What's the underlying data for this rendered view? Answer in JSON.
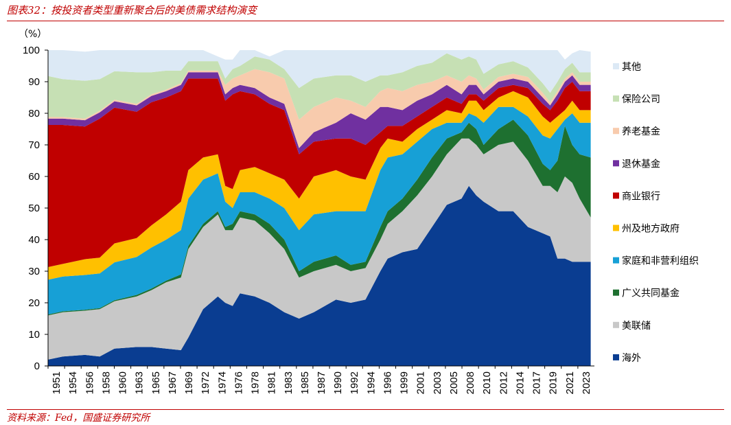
{
  "title": "图表32：按投资者类型重新聚合后的美债需求结构演变",
  "source": "资料来源：Fed，国盛证券研究所",
  "chart_data": {
    "type": "area",
    "stacked": true,
    "ylabel": "（%）",
    "ylim": [
      0,
      100
    ],
    "yticks": [
      "0",
      "10",
      "20",
      "30",
      "40",
      "50",
      "60",
      "70",
      "80",
      "90",
      "100"
    ],
    "xlim": [
      1951,
      2025
    ],
    "xtick_labels": [
      "1951",
      "1954",
      "1956",
      "1958",
      "1960",
      "1963",
      "1965",
      "1967",
      "1969",
      "1972",
      "1974",
      "1976",
      "1978",
      "1981",
      "1983",
      "1985",
      "1987",
      "1990",
      "1992",
      "1994",
      "1996",
      "1999",
      "2001",
      "2003",
      "2005",
      "2008",
      "2010",
      "2012",
      "2014",
      "2017",
      "2019",
      "2021",
      "2023"
    ],
    "legend_position": "right",
    "x": [
      1951,
      1953,
      1956,
      1958,
      1960,
      1963,
      1965,
      1967,
      1969,
      1970,
      1972,
      1974,
      1975,
      1976,
      1977,
      1979,
      1981,
      1983,
      1985,
      1987,
      1990,
      1992,
      1994,
      1996,
      1997,
      1999,
      2001,
      2003,
      2005,
      2007,
      2008,
      2009,
      2010,
      2012,
      2014,
      2016,
      2018,
      2019,
      2020,
      2021,
      2022,
      2023,
      2024.5
    ],
    "series": [
      {
        "name": "海外",
        "color": "#0a3d91",
        "values": [
          2,
          3,
          3.5,
          3,
          5.5,
          6,
          6,
          5.5,
          5,
          9,
          18,
          22,
          20,
          19,
          23,
          22,
          20,
          17,
          15,
          17,
          21,
          20,
          21,
          30,
          34,
          36,
          37,
          44,
          51,
          53,
          57,
          54,
          52,
          49,
          49,
          44,
          42,
          41,
          34,
          34,
          33,
          33,
          33
        ]
      },
      {
        "name": "美联储",
        "color": "#c8c8c8",
        "values": [
          14,
          14,
          14,
          15,
          15,
          16,
          18,
          21,
          23,
          28,
          26,
          26,
          23,
          24,
          24,
          24,
          22,
          20,
          13,
          13,
          11,
          10,
          10,
          10,
          11,
          13,
          17,
          16,
          16,
          19,
          15,
          16,
          15,
          21,
          22,
          21,
          15,
          16,
          21,
          26,
          25,
          20,
          14
        ]
      },
      {
        "name": "广义共同基金",
        "color": "#1e7030",
        "values": [
          0.3,
          0.3,
          0.3,
          0.3,
          0.3,
          0.5,
          0.5,
          0.5,
          1,
          1,
          1,
          1,
          1,
          2,
          2,
          2,
          3,
          3,
          2,
          3,
          3,
          2,
          2,
          4,
          4,
          4,
          5,
          6,
          5,
          2,
          5,
          5,
          3,
          5,
          7,
          8,
          7,
          5,
          10,
          16,
          12,
          14,
          19
        ]
      },
      {
        "name": "家庭和非营利组织",
        "color": "#17a0d6",
        "values": [
          11,
          11,
          11,
          11,
          12,
          12,
          13,
          13,
          14,
          15,
          14,
          12,
          8,
          5,
          6,
          7,
          8,
          10,
          13,
          15,
          14,
          17,
          16,
          18,
          17,
          14,
          12,
          9,
          5,
          3,
          3,
          4,
          7,
          7,
          4,
          6,
          9,
          10,
          10,
          2,
          10,
          10,
          11
        ]
      },
      {
        "name": "州及地方政府",
        "color": "#ffc000",
        "values": [
          4,
          4,
          5,
          5,
          6,
          6,
          7,
          8,
          9,
          9,
          7,
          6,
          5,
          6,
          7,
          8,
          8,
          9,
          10,
          12,
          13,
          11,
          10,
          7,
          6,
          4,
          4,
          3,
          4,
          3,
          4,
          5,
          4,
          3,
          5,
          6,
          6,
          5,
          4,
          3,
          4,
          4,
          4
        ]
      },
      {
        "name": "商业银行",
        "color": "#c00000",
        "values": [
          45,
          44,
          42,
          44,
          43,
          40,
          39,
          37,
          35,
          29,
          25,
          24,
          27,
          30,
          25,
          23,
          22,
          22,
          14,
          11,
          10,
          12,
          11,
          5,
          4,
          5,
          4,
          4,
          4,
          3,
          2,
          2,
          3,
          3,
          2,
          3,
          4,
          4,
          5,
          7,
          6,
          6,
          6
        ]
      },
      {
        "name": "退休基金",
        "color": "#7030a0",
        "values": [
          2,
          2,
          2,
          2,
          2,
          2,
          2,
          2,
          2,
          2,
          2,
          2,
          2,
          2,
          2,
          2,
          2,
          2,
          2,
          3,
          5,
          8,
          8,
          8,
          6,
          5,
          5,
          4,
          4,
          3,
          3,
          3,
          2,
          2,
          2,
          2,
          2,
          1.5,
          2,
          2,
          2,
          2,
          2
        ]
      },
      {
        "name": "养老基金",
        "color": "#f8cbad",
        "values": [
          0.5,
          0.5,
          0.5,
          0.5,
          0.5,
          0.5,
          0.5,
          0.5,
          0.5,
          0.5,
          0.5,
          0.5,
          3,
          3,
          3,
          6,
          8,
          8,
          9,
          8,
          8,
          4,
          4,
          5,
          6,
          6,
          5,
          4,
          3,
          4,
          3,
          2,
          1.5,
          1.5,
          1.5,
          1.5,
          1.5,
          1,
          1,
          1,
          1,
          1,
          1
        ]
      },
      {
        "name": "保险公司",
        "color": "#c6e0b4",
        "values": [
          13,
          12,
          12,
          10,
          9,
          10,
          7,
          6,
          4,
          3,
          3,
          3,
          2,
          3,
          3,
          4,
          4,
          3,
          10,
          9,
          7,
          8,
          8,
          5,
          4,
          6,
          6,
          6,
          7,
          7,
          6,
          6,
          5,
          4,
          4,
          3,
          3,
          3,
          3,
          3,
          3,
          3,
          3
        ]
      },
      {
        "name": "其他",
        "color": "#dce9f5",
        "values": [
          12.2,
          9.2,
          9.2,
          9.2,
          6.7,
          7,
          7,
          6.5,
          6.5,
          3.5,
          3.5,
          1.5,
          6,
          3,
          5,
          2,
          1,
          6,
          12,
          9,
          8,
          8,
          10,
          8,
          8,
          7,
          5,
          4,
          5,
          7,
          2,
          3,
          7.5,
          4.5,
          3.5,
          5.5,
          10.5,
          13.5,
          10,
          3,
          3,
          7,
          6.5
        ]
      }
    ]
  }
}
